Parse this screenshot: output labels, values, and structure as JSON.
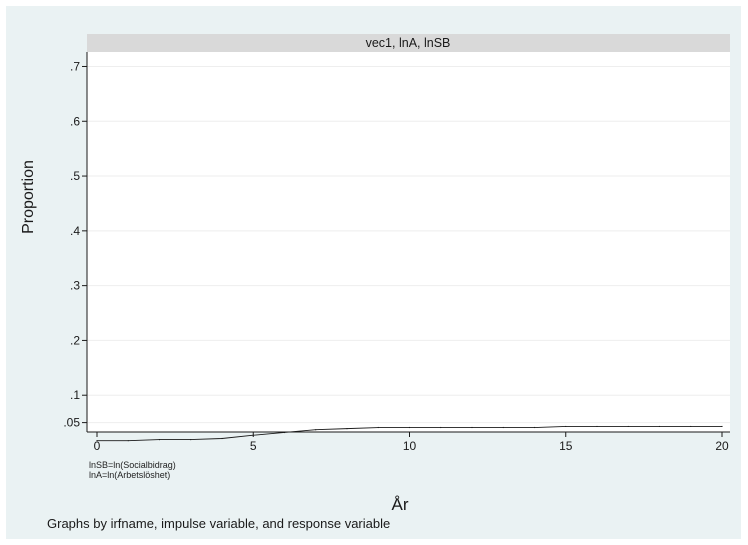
{
  "chart_data": {
    "type": "line",
    "title": "vec1, lnA, lnSB",
    "xlabel": "År",
    "ylabel": "Proportion",
    "xlim": [
      0,
      20
    ],
    "ylim": [
      0,
      0.71
    ],
    "x_ticks": [
      0,
      5,
      10,
      15,
      20
    ],
    "x_tick_labels": [
      "0",
      "5",
      "10",
      "15",
      "20"
    ],
    "y_ticks": [
      0.05,
      0.1,
      0.2,
      0.3,
      0.4,
      0.5,
      0.6,
      0.7
    ],
    "y_tick_labels": [
      ".05",
      ".1",
      ".2",
      ".3",
      ".4",
      ".5",
      ".6",
      ".7"
    ],
    "grid": true,
    "series": [
      {
        "x": [
          0,
          1,
          2,
          3,
          4,
          5,
          6,
          7,
          8,
          9,
          10,
          11,
          12,
          13,
          14,
          15,
          16,
          17,
          18,
          19,
          20
        ],
        "values": [
          0.017,
          0.017,
          0.019,
          0.019,
          0.021,
          0.027,
          0.032,
          0.037,
          0.039,
          0.041,
          0.041,
          0.041,
          0.041,
          0.041,
          0.041,
          0.043,
          0.043,
          0.043,
          0.043,
          0.043,
          0.043
        ]
      }
    ]
  },
  "notes": {
    "line1": "lnSB=ln(Socialbidrag)",
    "line2": "lnA=ln(Arbetslöshet)"
  },
  "footer": "Graphs by irfname, impulse variable, and response variable",
  "colors": {
    "background_outer": "#eaf2f3",
    "plot_background": "#ffffff",
    "strip_background": "#d9d9d9",
    "line": "#1a1a1a",
    "grid": "#eeeeee"
  }
}
